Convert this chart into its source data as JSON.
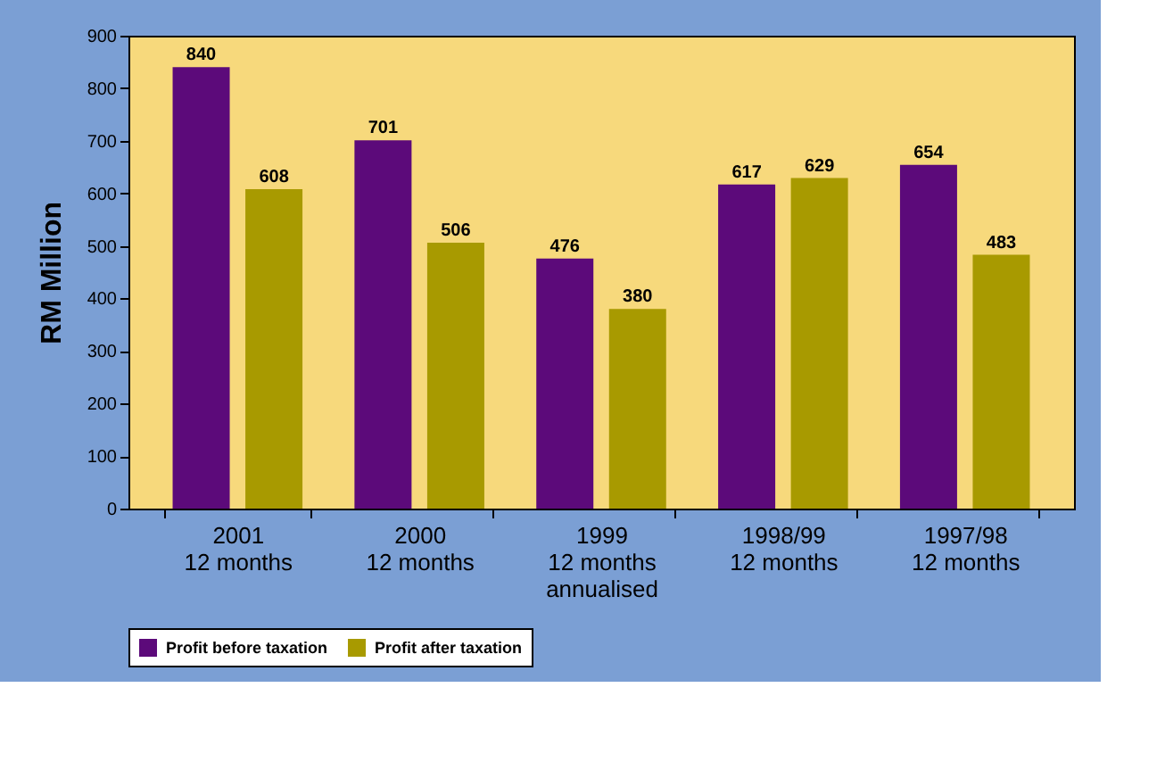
{
  "chart_data": {
    "type": "bar",
    "categories": [
      "2001\n12 months",
      "2000\n12 months",
      "1999\n12 months\nannualised",
      "1998/99\n12 months",
      "1997/98\n12 months"
    ],
    "series": [
      {
        "name": "Profit before taxation",
        "color": "#5c0a7a",
        "values": [
          840,
          701,
          476,
          617,
          654
        ]
      },
      {
        "name": "Profit after taxation",
        "color": "#a89a00",
        "values": [
          608,
          506,
          380,
          629,
          483
        ]
      }
    ],
    "ylabel": "RM Million",
    "ylim": [
      0,
      900
    ],
    "yticks": [
      0,
      100,
      200,
      300,
      400,
      500,
      600,
      700,
      800,
      900
    ],
    "data_labels": true,
    "grid": false,
    "legend": "bottom"
  }
}
